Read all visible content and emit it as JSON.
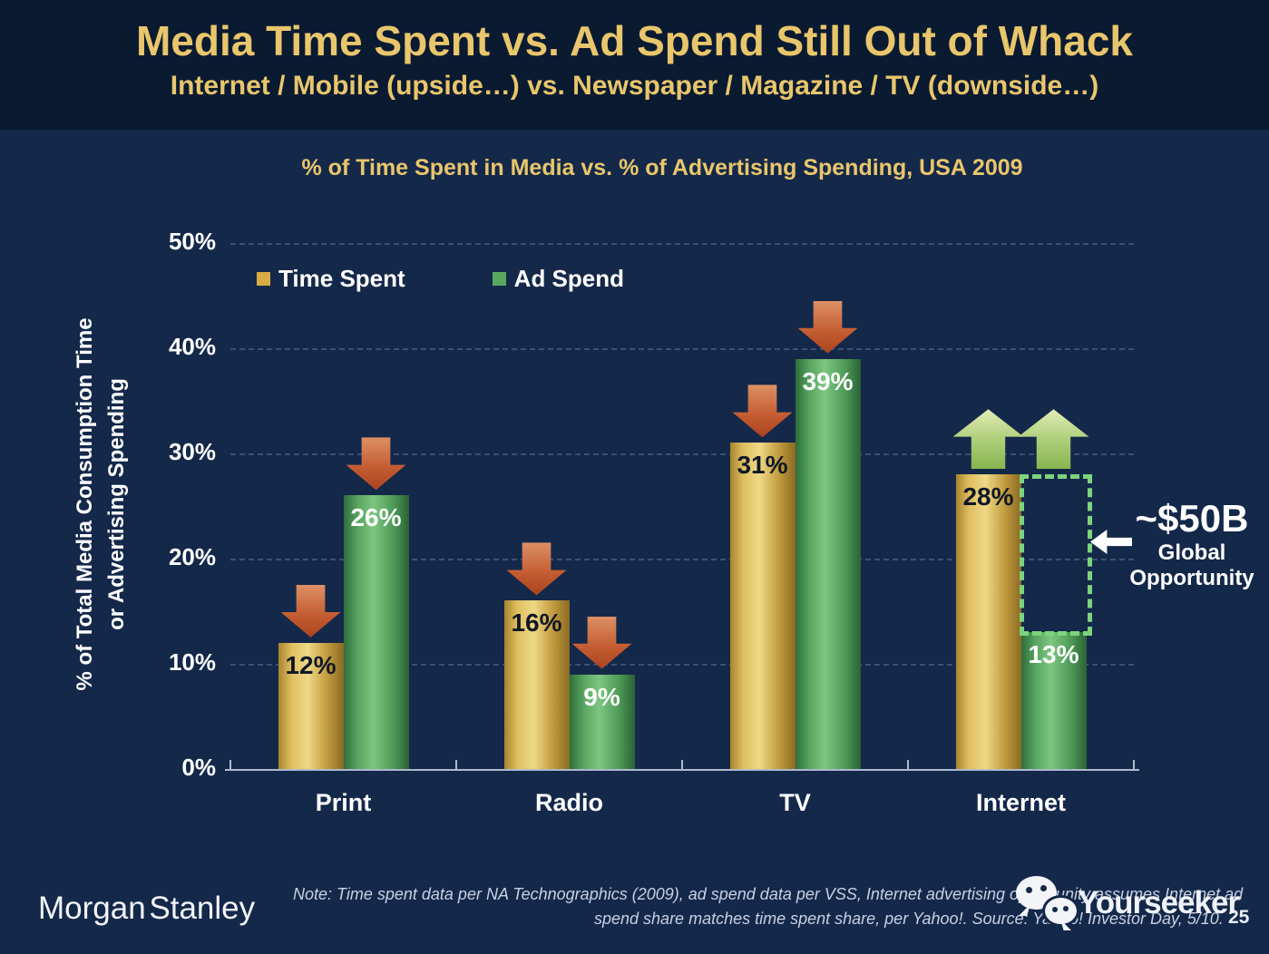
{
  "slide": {
    "title": "Media Time Spent vs. Ad Spend Still Out of Whack",
    "subtitle": "Internet / Mobile (upside…) vs. Newspaper / Magazine / TV (downside…)"
  },
  "chart_data": {
    "type": "bar",
    "title": "% of Time Spent in Media vs. % of Advertising Spending, USA 2009",
    "categories": [
      "Print",
      "Radio",
      "TV",
      "Internet"
    ],
    "series": [
      {
        "name": "Time Spent",
        "color": "#d9ab45",
        "values": [
          12,
          16,
          31,
          28
        ]
      },
      {
        "name": "Ad Spend",
        "color": "#5aa85e",
        "values": [
          26,
          9,
          39,
          13
        ]
      }
    ],
    "ylabel_line1": "% of Total Media Consumption Time",
    "ylabel_line2": "or Advertising Spending",
    "ylim": [
      0,
      50
    ],
    "yticks": [
      0,
      10,
      20,
      30,
      40,
      50
    ],
    "ytick_suffix": "%",
    "grid": "dashed horizontal gridlines",
    "legend_position": "top-left inside plot",
    "annotations": {
      "arrow_directions_by_category": [
        "down",
        "down",
        "down",
        "up"
      ],
      "down_arrow_color": "#c45a33",
      "up_arrow_color": "#a8cc6e",
      "up_arrow_anchor_value": 28,
      "opportunity": {
        "category": "Internet",
        "series": "Ad Spend",
        "from_value": 13,
        "to_value": 28,
        "box_color": "#7cd47c",
        "label_value": "~$50B",
        "label_line1": "Global",
        "label_line2": "Opportunity"
      }
    }
  },
  "footer": {
    "logo": "Morgan Stanley",
    "note_line1": "Note: Time spent data per NA Technographics (2009), ad spend data per VSS, Internet advertising opportunity assumes Internet ad",
    "note_line2": "spend share matches time spent share, per Yahoo!. Source: Yahoo! Investor Day, 5/10.",
    "page_number": "25"
  },
  "watermark": {
    "icon": "wechat-icon",
    "text": "Yourseeker"
  }
}
